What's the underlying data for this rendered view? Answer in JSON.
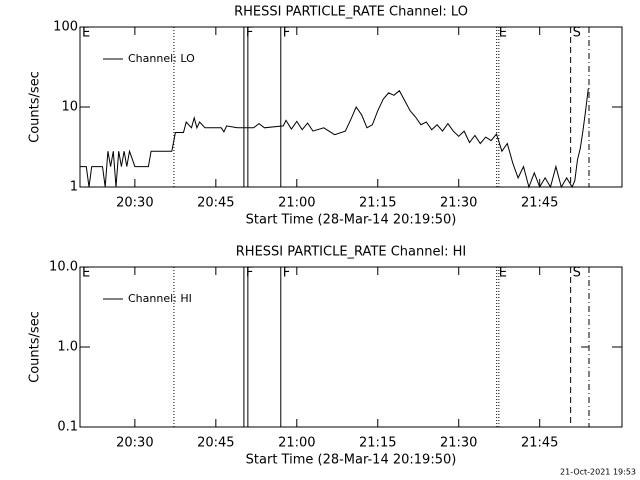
{
  "chart_data": [
    {
      "type": "line",
      "title": "RHESSI PARTICLE_RATE Channel: LO",
      "x_label": "Start Time (28-Mar-14 20:19:50)",
      "y_label": "Counts/sec",
      "log_y": true,
      "legend": "upper left",
      "xlim": [
        "20:19:50",
        "22:00:15"
      ],
      "xticks": [
        "20:30",
        "20:45",
        "21:00",
        "21:15",
        "21:30",
        "21:45"
      ],
      "ylim": [
        1,
        100
      ],
      "yticks": [
        1,
        10,
        100
      ],
      "x": [
        "20:19:50",
        "20:21:00",
        "20:21:30",
        "20:22:00",
        "20:24:00",
        "20:24:30",
        "20:25:00",
        "20:25:30",
        "20:26:00",
        "20:26:30",
        "20:27:00",
        "20:27:30",
        "20:28:00",
        "20:28:30",
        "20:29:00",
        "20:30:00",
        "20:32:30",
        "20:33:00",
        "20:36:50",
        "20:37:30",
        "20:39:00",
        "20:39:30",
        "20:40:30",
        "20:41:00",
        "20:41:30",
        "20:42:00",
        "20:43:00",
        "20:46:00",
        "20:46:30",
        "20:47:00",
        "20:49:00",
        "20:52:00",
        "20:53:00",
        "20:54:00",
        "20:57:30",
        "20:58:00",
        "20:59:00",
        "21:00:00",
        "21:01:00",
        "21:02:00",
        "21:03:00",
        "21:05:00",
        "21:07:00",
        "21:09:00",
        "21:10:00",
        "21:11:00",
        "21:12:00",
        "21:13:00",
        "21:14:00",
        "21:15:00",
        "21:16:00",
        "21:17:00",
        "21:18:00",
        "21:19:00",
        "21:20:00",
        "21:21:00",
        "21:22:00",
        "21:23:00",
        "21:24:00",
        "21:25:00",
        "21:26:00",
        "21:27:00",
        "21:28:00",
        "21:29:00",
        "21:30:00",
        "21:31:00",
        "21:32:00",
        "21:33:00",
        "21:34:00",
        "21:35:00",
        "21:36:00",
        "21:37:00",
        "21:38:00",
        "21:39:00",
        "21:40:00",
        "21:41:00",
        "21:42:00",
        "21:43:00",
        "21:44:00",
        "21:45:00",
        "21:46:00",
        "21:47:00",
        "21:48:00",
        "21:49:00",
        "21:50:00",
        "21:51:00",
        "21:51:30",
        "21:52:00",
        "21:52:30",
        "21:53:00",
        "21:53:30",
        "21:54:00"
      ],
      "series": [
        {
          "name": "Channel: LO",
          "color": "#000000",
          "values": [
            1.8,
            1.8,
            1,
            1.8,
            1.8,
            1,
            2.8,
            1.8,
            2.8,
            1,
            2.8,
            1.8,
            2.8,
            1.8,
            2.8,
            1.8,
            1.8,
            2.8,
            2.8,
            4.8,
            4.8,
            6.5,
            5.5,
            7.3,
            5.5,
            6.5,
            5.5,
            5.5,
            4.9,
            5.8,
            5.5,
            5.5,
            6.2,
            5.5,
            5.8,
            6.8,
            5.3,
            6.6,
            5.2,
            6.3,
            5,
            5.5,
            4.5,
            5,
            7,
            10,
            8,
            5.5,
            6,
            9,
            12.5,
            15,
            14,
            16,
            12,
            9,
            7.5,
            6,
            6.5,
            5.2,
            6,
            5,
            6.2,
            5,
            4.3,
            5,
            3.6,
            4.4,
            3.5,
            4.2,
            3.8,
            4.6,
            2.8,
            3.5,
            2,
            1.3,
            1.8,
            1,
            1.5,
            1,
            1.3,
            1,
            1.8,
            1,
            1.3,
            1,
            1.2,
            2.2,
            3,
            5,
            9,
            17
          ]
        }
      ],
      "markers": [
        {
          "x": "20:19:50",
          "style": "solid",
          "label": "E"
        },
        {
          "x": "20:37:14",
          "style": "dotted"
        },
        {
          "x": "20:50:12",
          "style": "solid",
          "label": "F"
        },
        {
          "x": "20:50:56",
          "style": "solid"
        },
        {
          "x": "20:57:02",
          "style": "solid",
          "label": "F"
        },
        {
          "x": "21:37:02",
          "style": "dotted",
          "label": "E"
        },
        {
          "x": "21:37:26",
          "style": "dotted"
        },
        {
          "x": "21:50:44",
          "style": "dashed",
          "label": "S"
        },
        {
          "x": "21:54:08",
          "style": "dashdot"
        }
      ]
    },
    {
      "type": "line",
      "title": "RHESSI PARTICLE_RATE Channel: HI",
      "x_label": "Start Time (28-Mar-14 20:19:50)",
      "y_label": "Counts/sec",
      "log_y": true,
      "legend": "upper left",
      "xlim": [
        "20:19:50",
        "22:00:15"
      ],
      "xticks": [
        "20:30",
        "20:45",
        "21:00",
        "21:15",
        "21:30",
        "21:45"
      ],
      "ylim": [
        0.1,
        10
      ],
      "yticks": [
        0.1,
        {
          "value": 1,
          "label": "1.0"
        },
        {
          "value": 10,
          "label": "10.0"
        }
      ],
      "x": [
        "21:52:40",
        "21:54:00"
      ],
      "series": [
        {
          "name": "Channel: HI",
          "color": "#000000",
          "values": [
            1,
            1
          ]
        }
      ],
      "markers": [
        {
          "x": "20:19:50",
          "style": "solid",
          "label": "E"
        },
        {
          "x": "20:37:14",
          "style": "dotted"
        },
        {
          "x": "20:50:12",
          "style": "solid",
          "label": "F"
        },
        {
          "x": "20:50:56",
          "style": "solid"
        },
        {
          "x": "20:57:02",
          "style": "solid",
          "label": "F"
        },
        {
          "x": "21:37:02",
          "style": "dotted",
          "label": "E"
        },
        {
          "x": "21:37:26",
          "style": "dotted"
        },
        {
          "x": "21:50:44",
          "style": "dashed",
          "label": "S"
        },
        {
          "x": "21:54:08",
          "style": "dashdot"
        }
      ]
    }
  ],
  "footer": "21-Oct-2021 19:53"
}
